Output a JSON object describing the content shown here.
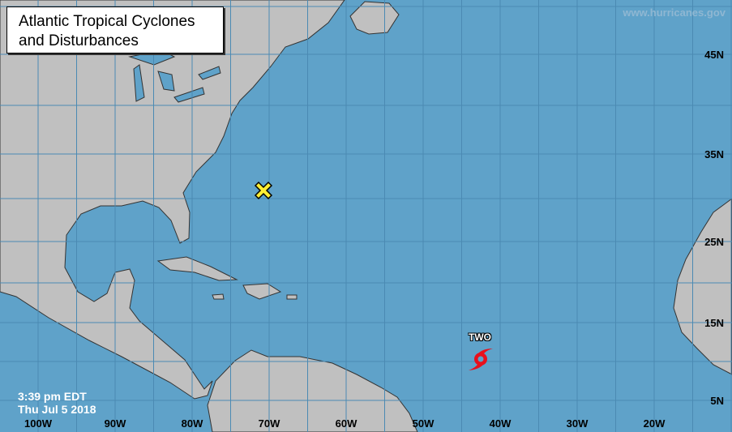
{
  "title": {
    "line1": "Atlantic Tropical Cyclones",
    "line2": "and Disturbances"
  },
  "credit": "www.hurricanes.gov",
  "timestamp": {
    "time": "3:39 pm EDT",
    "date": "Thu Jul 5 2018"
  },
  "latitude_labels": [
    "45N",
    "35N",
    "25N",
    "15N",
    "5N"
  ],
  "longitude_labels": [
    "100W",
    "90W",
    "80W",
    "70W",
    "60W",
    "50W",
    "40W",
    "30W",
    "20W"
  ],
  "systems": [
    {
      "type": "disturbance",
      "icon": "yellow-x-icon"
    },
    {
      "type": "tropical-cyclone",
      "name": "TWO",
      "icon": "tropical-storm-icon"
    }
  ],
  "colors": {
    "ocean": "#5fa2c9",
    "land": "#c0c0c0",
    "grid": "#4b8ab3",
    "cyclone": "#e8101c",
    "disturbance": "#ffee33"
  }
}
